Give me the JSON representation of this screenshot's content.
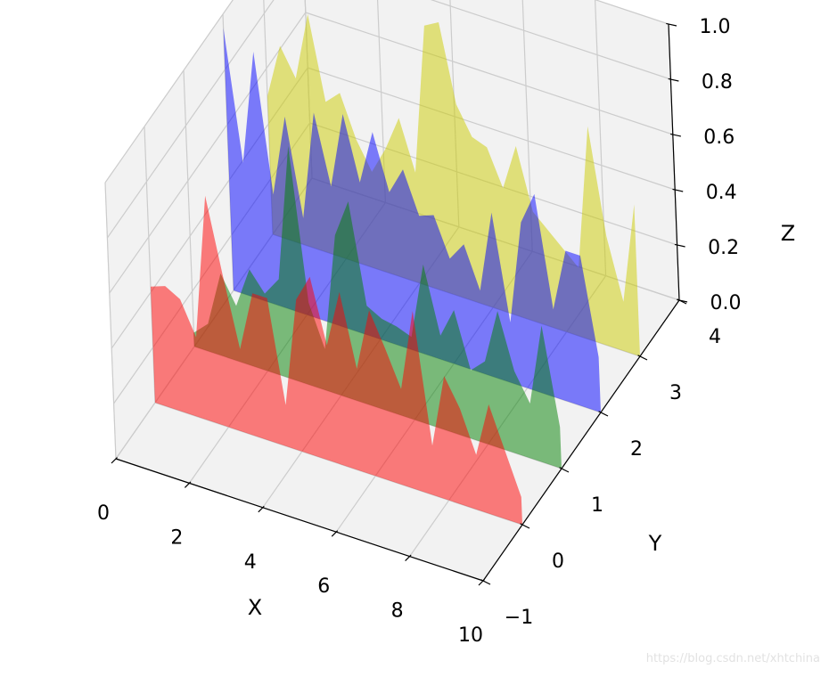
{
  "chart_data": {
    "type": "area",
    "subtype": "3d-polygon-collection",
    "title": "",
    "xlabel": "X",
    "ylabel": "Y",
    "zlabel": "Z",
    "xlim": [
      0,
      10
    ],
    "ylim": [
      -1,
      4
    ],
    "zlim": [
      0,
      1
    ],
    "xticks": [
      "0",
      "2",
      "4",
      "6",
      "8",
      "10"
    ],
    "yticks": [
      "−1",
      "0",
      "1",
      "2",
      "3",
      "4"
    ],
    "zticks": [
      "0.0",
      "0.2",
      "0.4",
      "0.6",
      "0.8",
      "1.0"
    ],
    "grid": true,
    "x": [
      0,
      0.4,
      0.8,
      1.2,
      1.6,
      2.0,
      2.4,
      2.8,
      3.2,
      3.6,
      4.0,
      4.4,
      4.8,
      5.2,
      5.6,
      6.0,
      6.4,
      6.8,
      7.2,
      7.6,
      8.0,
      8.4,
      8.8,
      9.2,
      9.6,
      10.0
    ],
    "series": [
      {
        "y": 0,
        "color": "#ff0000",
        "alpha": 0.5,
        "values": [
          0.42,
          0.44,
          0.41,
          0.29,
          0.82,
          0.55,
          0.3,
          0.52,
          0.52,
          0.15,
          0.55,
          0.65,
          0.42,
          0.63,
          0.37,
          0.6,
          0.48,
          0.35,
          0.65,
          0.18,
          0.45,
          0.35,
          0.2,
          0.4,
          0.25,
          0.1
        ]
      },
      {
        "y": 1,
        "color": "#008000",
        "alpha": 0.5,
        "values": [
          0.05,
          0.1,
          0.3,
          0.2,
          0.35,
          0.28,
          0.35,
          0.85,
          0.3,
          0.15,
          0.58,
          0.72,
          0.36,
          0.33,
          0.32,
          0.3,
          0.58,
          0.34,
          0.45,
          0.25,
          0.3,
          0.5,
          0.3,
          0.2,
          0.5,
          0.15
        ]
      },
      {
        "y": 2,
        "color": "#0000ff",
        "alpha": 0.5,
        "values": [
          0.95,
          0.48,
          0.9,
          0.4,
          0.7,
          0.35,
          0.75,
          0.5,
          0.78,
          0.55,
          0.75,
          0.55,
          0.65,
          0.5,
          0.52,
          0.38,
          0.45,
          0.3,
          0.6,
          0.22,
          0.6,
          0.72,
          0.32,
          0.55,
          0.55,
          0.2
        ]
      },
      {
        "y": 3,
        "color": "#cccc00",
        "alpha": 0.5,
        "values": [
          0.5,
          0.7,
          0.6,
          0.85,
          0.55,
          0.6,
          0.45,
          0.35,
          0.45,
          0.58,
          0.4,
          0.95,
          0.98,
          0.7,
          0.6,
          0.58,
          0.45,
          0.62,
          0.4,
          0.35,
          0.3,
          0.25,
          0.78,
          0.4,
          0.18,
          0.55
        ]
      }
    ]
  },
  "watermark": "https://blog.csdn.net/xhtchina"
}
